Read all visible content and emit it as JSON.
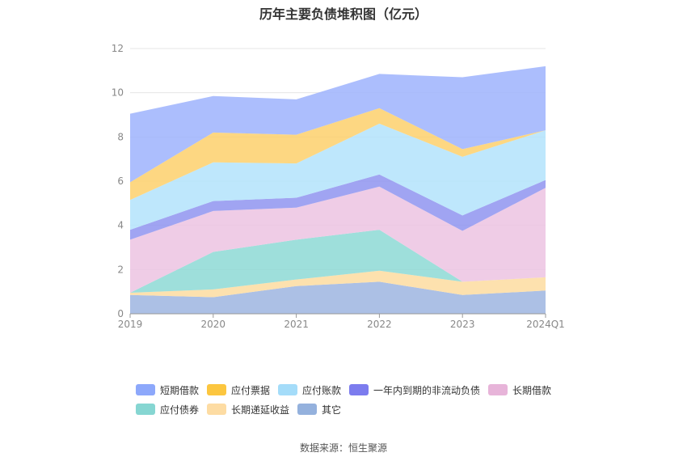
{
  "chart_data": {
    "type": "area",
    "stacked": true,
    "title": "历年主要负债堆积图（亿元）",
    "categories": [
      "2019",
      "2020",
      "2021",
      "2022",
      "2023",
      "2024Q1"
    ],
    "ylim": [
      0,
      12
    ],
    "yticks": [
      "0",
      "2",
      "4",
      "6",
      "8",
      "10",
      "12"
    ],
    "grid": true,
    "legend_position": "bottom",
    "series": [
      {
        "name": "其它",
        "color": "#9db5e0",
        "values": [
          0.85,
          0.75,
          1.25,
          1.45,
          0.85,
          1.05
        ]
      },
      {
        "name": "长期递延收益",
        "color": "#fddca0",
        "values": [
          0.1,
          0.35,
          0.3,
          0.5,
          0.6,
          0.6
        ]
      },
      {
        "name": "应付债券",
        "color": "#8dd9d5",
        "values": [
          0.0,
          1.7,
          1.8,
          1.85,
          0.0,
          0.0
        ]
      },
      {
        "name": "长期借款",
        "color": "#ecc3e2",
        "values": [
          2.4,
          1.85,
          1.45,
          1.95,
          2.3,
          4.05
        ]
      },
      {
        "name": "一年内到期的非流动负债",
        "color": "#8f94f0",
        "values": [
          0.45,
          0.45,
          0.45,
          0.55,
          0.7,
          0.35
        ]
      },
      {
        "name": "应付账款",
        "color": "#b3e3fb",
        "values": [
          1.35,
          1.75,
          1.55,
          2.3,
          2.65,
          2.25
        ]
      },
      {
        "name": "应付票据",
        "color": "#fdd06c",
        "values": [
          0.8,
          1.35,
          1.3,
          0.7,
          0.35,
          0.0
        ]
      },
      {
        "name": "短期借款",
        "color": "#9eb3fd",
        "values": [
          3.1,
          1.65,
          1.6,
          1.55,
          3.25,
          2.9
        ]
      }
    ]
  },
  "legend": {
    "items": [
      {
        "label": "短期借款",
        "color": "#8da8fb"
      },
      {
        "label": "应付票据",
        "color": "#fcc63f"
      },
      {
        "label": "应付账款",
        "color": "#a4dcf9"
      },
      {
        "label": "一年内到期的非流动负债",
        "color": "#7c7cee"
      },
      {
        "label": "长期借款",
        "color": "#e7b4d9"
      },
      {
        "label": "应付债券",
        "color": "#86d6d2"
      },
      {
        "label": "长期递延收益",
        "color": "#fddca3"
      },
      {
        "label": "其它",
        "color": "#94b1dd"
      }
    ]
  },
  "source": "数据来源：恒生聚源"
}
